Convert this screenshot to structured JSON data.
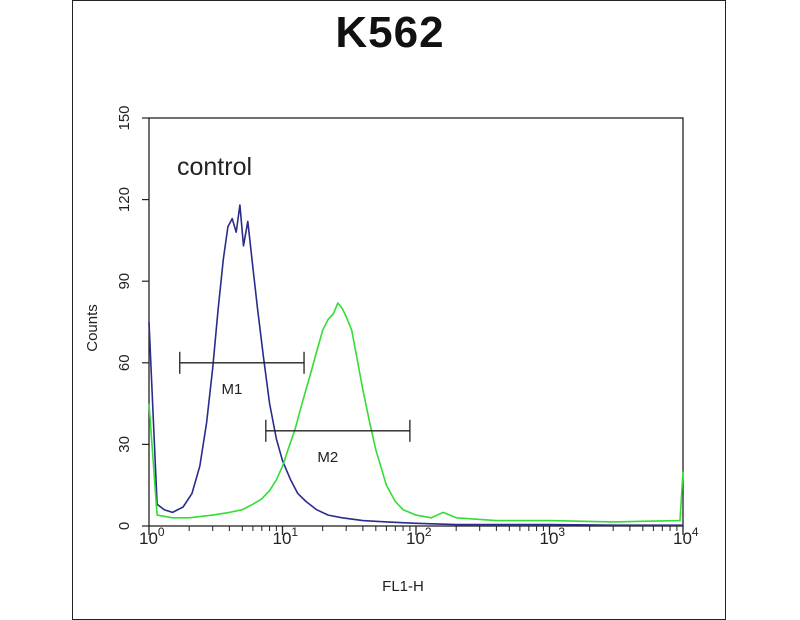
{
  "chart_data": {
    "type": "line",
    "title": "K562",
    "xlabel": "FL1-H",
    "ylabel": "Counts",
    "x_scale": "log",
    "xlim": [
      1,
      10000
    ],
    "ylim": [
      0,
      150
    ],
    "y_ticks": [
      0,
      30,
      60,
      90,
      120,
      150
    ],
    "x_ticks": [
      {
        "value": 1,
        "base": "10",
        "exp": "0"
      },
      {
        "value": 10,
        "base": "10",
        "exp": "1"
      },
      {
        "value": 100,
        "base": "10",
        "exp": "2"
      },
      {
        "value": 1000,
        "base": "10",
        "exp": "3"
      },
      {
        "value": 10000,
        "base": "10",
        "exp": "4"
      }
    ],
    "annotation": "control",
    "series": [
      {
        "color": "#2b2b8c",
        "x": [
          1.0,
          1.15,
          1.3,
          1.5,
          1.8,
          2.1,
          2.4,
          2.7,
          3.0,
          3.3,
          3.6,
          3.9,
          4.2,
          4.5,
          4.8,
          5.1,
          5.5,
          6.0,
          6.5,
          7.2,
          8.0,
          9.0,
          10.0,
          11.5,
          13.0,
          15.0,
          18.0,
          22.0,
          28.0,
          40.0,
          60.0,
          100.0,
          200.0,
          500.0,
          1000.0,
          3000.0,
          10000.0
        ],
        "y": [
          75,
          8,
          6,
          5,
          7,
          12,
          22,
          38,
          58,
          80,
          98,
          110,
          113,
          108,
          118,
          103,
          112,
          95,
          80,
          62,
          45,
          32,
          24,
          17,
          12,
          9,
          6,
          4,
          3,
          2,
          1.5,
          1,
          0.5,
          0.5,
          0.5,
          0.3,
          0.3
        ]
      },
      {
        "color": "#33dd33",
        "x": [
          1.0,
          1.15,
          1.5,
          2.0,
          3.0,
          4.0,
          5.0,
          6.0,
          7.0,
          8.0,
          9.0,
          10.0,
          11.0,
          12.5,
          14.0,
          16.0,
          18.0,
          20.0,
          22.0,
          24.0,
          26.0,
          28.0,
          30.0,
          33.0,
          36.0,
          40.0,
          45.0,
          50.0,
          60.0,
          70.0,
          80.0,
          100.0,
          130.0,
          160.0,
          200.0,
          400.0,
          1000.0,
          3000.0,
          9500.0,
          10000.0
        ],
        "y": [
          45,
          4,
          3,
          3,
          4,
          5,
          6,
          8,
          10,
          13,
          17,
          22,
          28,
          36,
          45,
          55,
          64,
          72,
          76,
          78,
          82,
          80,
          77,
          72,
          62,
          50,
          38,
          28,
          15,
          9,
          6,
          4,
          3,
          5,
          3,
          2,
          2,
          1.5,
          2,
          20
        ]
      }
    ],
    "markers": [
      {
        "label": "M1",
        "x1": 1.7,
        "x2": 14.5,
        "y": 60
      },
      {
        "label": "M2",
        "x1": 7.5,
        "x2": 90,
        "y": 35
      }
    ]
  }
}
